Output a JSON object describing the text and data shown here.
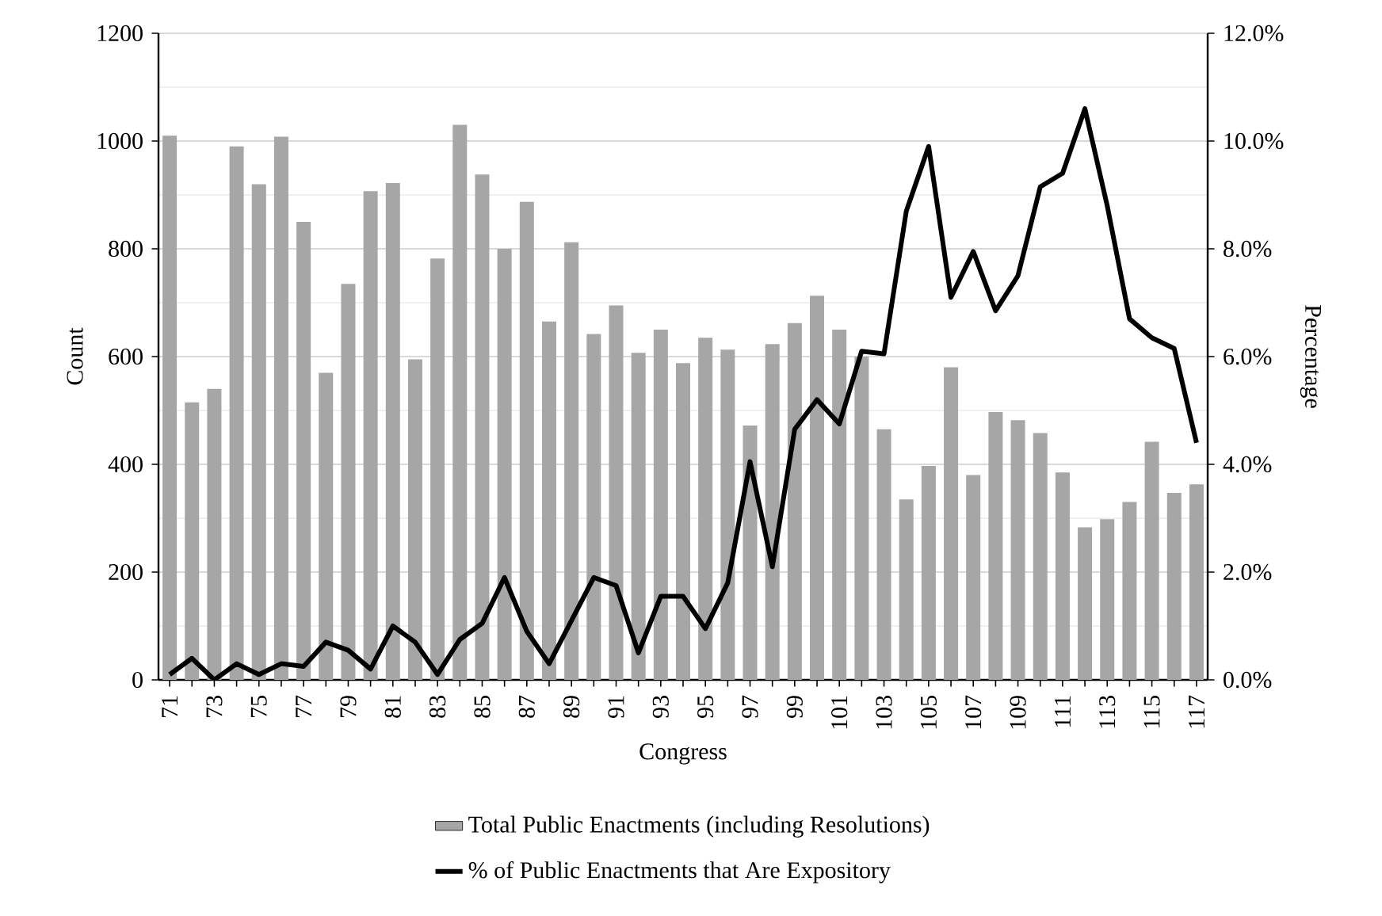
{
  "chart_data": {
    "type": "bar",
    "categories": [
      "71",
      null,
      "73",
      null,
      "75",
      null,
      "77",
      null,
      "79",
      null,
      "81",
      null,
      "83",
      null,
      "85",
      null,
      "87",
      null,
      "89",
      null,
      "91",
      null,
      "93",
      null,
      "95",
      null,
      "97",
      null,
      "99",
      null,
      "101",
      null,
      "103",
      null,
      "105",
      null,
      "107",
      null,
      "109",
      null,
      "111",
      null,
      "113",
      null,
      "115",
      null,
      "117"
    ],
    "series": [
      {
        "name": "Total Public Enactments (including Resolutions)",
        "color": "#a6a6a6",
        "values": [
          1010,
          515,
          540,
          990,
          920,
          1008,
          850,
          570,
          735,
          907,
          922,
          595,
          782,
          1030,
          938,
          800,
          887,
          665,
          812,
          642,
          695,
          607,
          650,
          588,
          635,
          613,
          472,
          623,
          662,
          713,
          650,
          600,
          465,
          335,
          397,
          580,
          380,
          497,
          482,
          458,
          385,
          283,
          298,
          330,
          442,
          347,
          363
        ]
      },
      {
        "name": "% of Public Enactments that Are Expository",
        "type": "line",
        "axis": "y2",
        "color": "#000000",
        "values": [
          0.1,
          0.4,
          0.0,
          0.3,
          0.1,
          0.3,
          0.25,
          0.7,
          0.55,
          0.2,
          1.0,
          0.7,
          0.1,
          0.75,
          1.05,
          1.9,
          0.9,
          0.3,
          1.1,
          1.9,
          1.75,
          0.5,
          1.55,
          1.55,
          0.95,
          1.8,
          4.05,
          2.1,
          4.65,
          5.2,
          4.75,
          6.1,
          6.05,
          8.7,
          9.9,
          7.1,
          7.95,
          6.85,
          7.5,
          9.15,
          9.4,
          10.6,
          8.8,
          6.7,
          6.35,
          6.15,
          4.4
        ]
      }
    ],
    "xlabel": "Congress",
    "ylabel": "Count",
    "y2label": "Percentage",
    "ylim": [
      0,
      1200
    ],
    "yticks": [
      0,
      200,
      400,
      600,
      800,
      1000,
      1200
    ],
    "y2lim": [
      0,
      12
    ],
    "y2ticks": [
      {
        "value": 0,
        "label": "0.0%"
      },
      {
        "value": 2,
        "label": "2.0%"
      },
      {
        "value": 4,
        "label": "4.0%"
      },
      {
        "value": 6,
        "label": "6.0%"
      },
      {
        "value": 8,
        "label": "8.0%"
      },
      {
        "value": 10,
        "label": "10.0%"
      },
      {
        "value": 12,
        "label": "12.0%"
      }
    ],
    "grid": "y",
    "legend": "bottom",
    "line_style": "solid"
  }
}
